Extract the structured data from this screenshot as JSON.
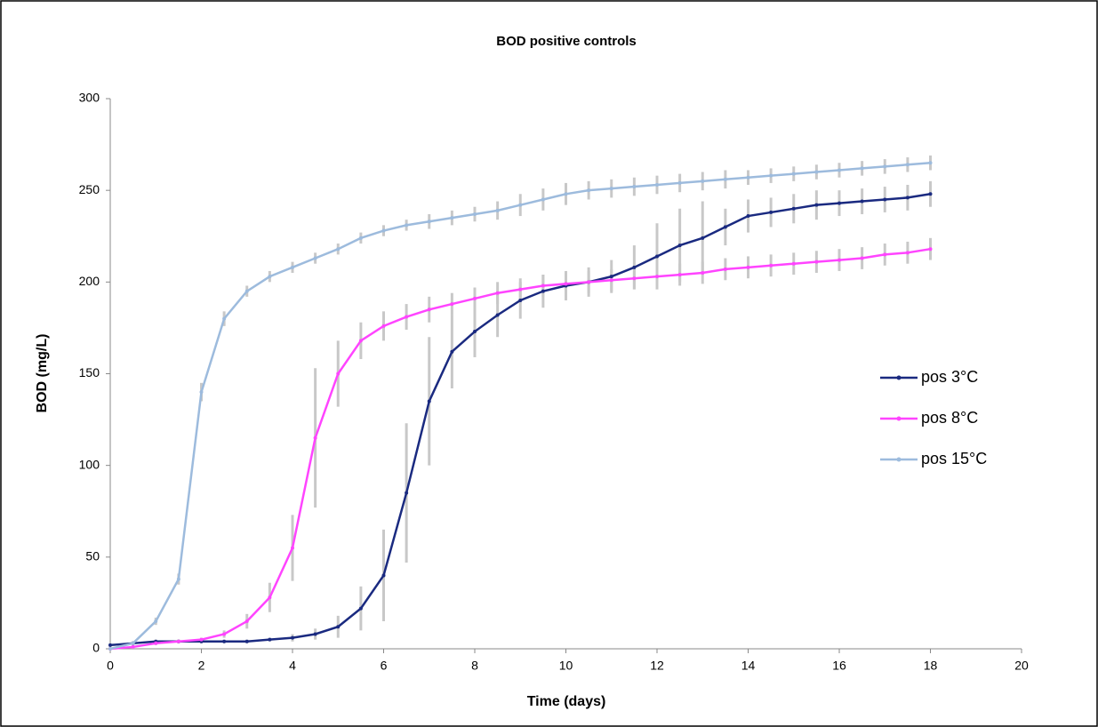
{
  "chart_data": {
    "type": "line",
    "title": "BOD positive controls",
    "x_label": "Time (days)",
    "y_label": "BOD (mg/L)",
    "x": [
      0,
      0.5,
      1,
      1.5,
      2,
      2.5,
      3,
      3.5,
      4,
      4.5,
      5,
      5.5,
      6,
      6.5,
      7,
      7.5,
      8,
      8.5,
      9,
      9.5,
      10,
      10.5,
      11,
      11.5,
      12,
      12.5,
      13,
      13.5,
      14,
      14.5,
      15,
      15.5,
      16,
      16.5,
      17,
      17.5,
      18
    ],
    "series": [
      {
        "name": "pos 3°C",
        "color": "#1a2a80",
        "values": [
          2,
          3,
          4,
          4,
          4,
          4,
          4,
          5,
          6,
          8,
          12,
          22,
          40,
          85,
          135,
          162,
          173,
          182,
          190,
          195,
          198,
          200,
          203,
          208,
          214,
          220,
          224,
          230,
          236,
          238,
          240,
          242,
          243,
          244,
          245,
          246,
          248
        ],
        "errors": [
          1,
          1,
          1,
          1,
          1,
          1,
          1,
          1,
          2,
          3,
          6,
          12,
          25,
          38,
          35,
          20,
          14,
          12,
          10,
          9,
          8,
          8,
          9,
          12,
          18,
          20,
          20,
          10,
          9,
          8,
          8,
          8,
          7,
          7,
          7,
          7,
          7
        ]
      },
      {
        "name": "pos 8°C",
        "color": "#ff44ff",
        "values": [
          0,
          1,
          3,
          4,
          5,
          8,
          15,
          28,
          55,
          115,
          150,
          168,
          176,
          181,
          185,
          188,
          191,
          194,
          196,
          198,
          199,
          200,
          201,
          202,
          203,
          204,
          205,
          207,
          208,
          209,
          210,
          211,
          212,
          213,
          215,
          216,
          218
        ],
        "errors": [
          0,
          1,
          1,
          1,
          1,
          2,
          4,
          8,
          18,
          38,
          18,
          10,
          8,
          7,
          7,
          6,
          6,
          6,
          6,
          6,
          6,
          6,
          6,
          6,
          6,
          6,
          6,
          6,
          6,
          6,
          6,
          6,
          6,
          6,
          6,
          6,
          6
        ]
      },
      {
        "name": "pos 15°C",
        "color": "#9dbbdd",
        "values": [
          0,
          3,
          15,
          38,
          140,
          180,
          195,
          203,
          208,
          213,
          218,
          224,
          228,
          231,
          233,
          235,
          237,
          239,
          242,
          245,
          248,
          250,
          251,
          252,
          253,
          254,
          255,
          256,
          257,
          258,
          259,
          260,
          261,
          262,
          263,
          264,
          265
        ],
        "errors": [
          0,
          1,
          2,
          3,
          5,
          4,
          3,
          3,
          3,
          3,
          3,
          3,
          3,
          3,
          4,
          4,
          4,
          5,
          6,
          6,
          6,
          5,
          5,
          5,
          5,
          5,
          5,
          5,
          4,
          4,
          4,
          4,
          4,
          4,
          4,
          4,
          4
        ]
      }
    ],
    "xlim": [
      0,
      20
    ],
    "ylim": [
      0,
      300
    ],
    "xticks": [
      0,
      2,
      4,
      6,
      8,
      10,
      12,
      14,
      16,
      18,
      20
    ],
    "yticks": [
      0,
      50,
      100,
      150,
      200,
      250,
      300
    ]
  }
}
